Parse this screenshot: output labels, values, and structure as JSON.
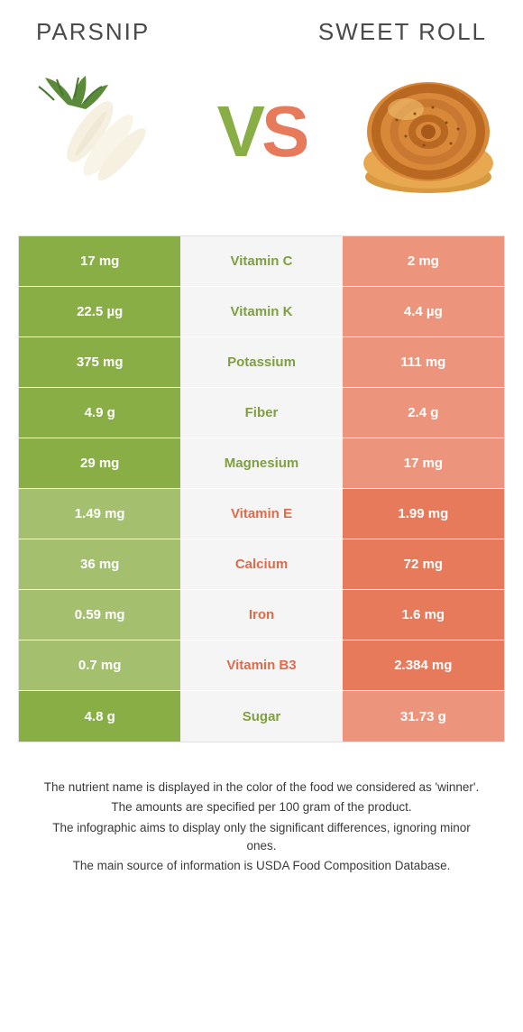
{
  "colors": {
    "green": "#8aae46",
    "green_light": "#a4bf6e",
    "green_text": "#7fa03e",
    "orange": "#e87a5c",
    "orange_light": "#ed957c",
    "orange_text": "#e06a4a"
  },
  "left_title": "Parsnip",
  "right_title": "Sweet roll",
  "vs_v": "V",
  "vs_s": "S",
  "rows": [
    {
      "left": "17 mg",
      "label": "Vitamin C",
      "right": "2 mg",
      "winner": "left"
    },
    {
      "left": "22.5 µg",
      "label": "Vitamin K",
      "right": "4.4 µg",
      "winner": "left"
    },
    {
      "left": "375 mg",
      "label": "Potassium",
      "right": "111 mg",
      "winner": "left"
    },
    {
      "left": "4.9 g",
      "label": "Fiber",
      "right": "2.4 g",
      "winner": "left"
    },
    {
      "left": "29 mg",
      "label": "Magnesium",
      "right": "17 mg",
      "winner": "left"
    },
    {
      "left": "1.49 mg",
      "label": "Vitamin E",
      "right": "1.99 mg",
      "winner": "right"
    },
    {
      "left": "36 mg",
      "label": "Calcium",
      "right": "72 mg",
      "winner": "right"
    },
    {
      "left": "0.59 mg",
      "label": "Iron",
      "right": "1.6 mg",
      "winner": "right"
    },
    {
      "left": "0.7 mg",
      "label": "Vitamin B3",
      "right": "2.384 mg",
      "winner": "right"
    },
    {
      "left": "4.8 g",
      "label": "Sugar",
      "right": "31.73 g",
      "winner": "left"
    }
  ],
  "footer": [
    "The nutrient name is displayed in the color of the food we considered as 'winner'.",
    "The amounts are specified per 100 gram of the product.",
    "The infographic aims to display only the significant differences, ignoring minor ones.",
    "The main source of information is USDA Food Composition Database."
  ]
}
